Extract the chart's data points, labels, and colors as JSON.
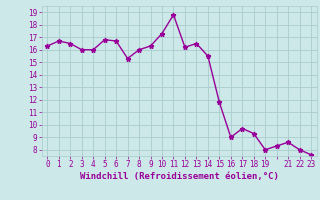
{
  "x": [
    0,
    1,
    2,
    3,
    4,
    5,
    6,
    7,
    8,
    9,
    10,
    11,
    12,
    13,
    14,
    15,
    16,
    17,
    18,
    19,
    20,
    21,
    22,
    23
  ],
  "y": [
    16.3,
    16.7,
    16.5,
    16.0,
    16.0,
    16.8,
    16.7,
    15.3,
    16.0,
    16.3,
    17.3,
    18.8,
    16.2,
    16.5,
    15.5,
    11.8,
    9.0,
    9.7,
    9.3,
    8.0,
    8.3,
    8.6,
    8.0,
    7.6
  ],
  "line_color": "#990099",
  "marker": "*",
  "marker_size": 3.5,
  "bg_color": "#cce8e8",
  "grid_color": "#aacccc",
  "xlabel": "Windchill (Refroidissement éolien,°C)",
  "xlabel_color": "#990099",
  "tick_color": "#990099",
  "ylabel_ticks": [
    8,
    9,
    10,
    11,
    12,
    13,
    14,
    15,
    16,
    17,
    18,
    19
  ],
  "xlim": [
    -0.5,
    23.5
  ],
  "ylim": [
    7.5,
    19.5
  ],
  "xtick_labels": [
    "0",
    "1",
    "2",
    "3",
    "4",
    "5",
    "6",
    "7",
    "8",
    "9",
    "10",
    "11",
    "12",
    "13",
    "14",
    "15",
    "16",
    "17",
    "18",
    "19",
    "",
    "21",
    "22",
    "23"
  ],
  "tick_fontsize": 5.5,
  "xlabel_fontsize": 6.5,
  "linewidth": 1.0
}
